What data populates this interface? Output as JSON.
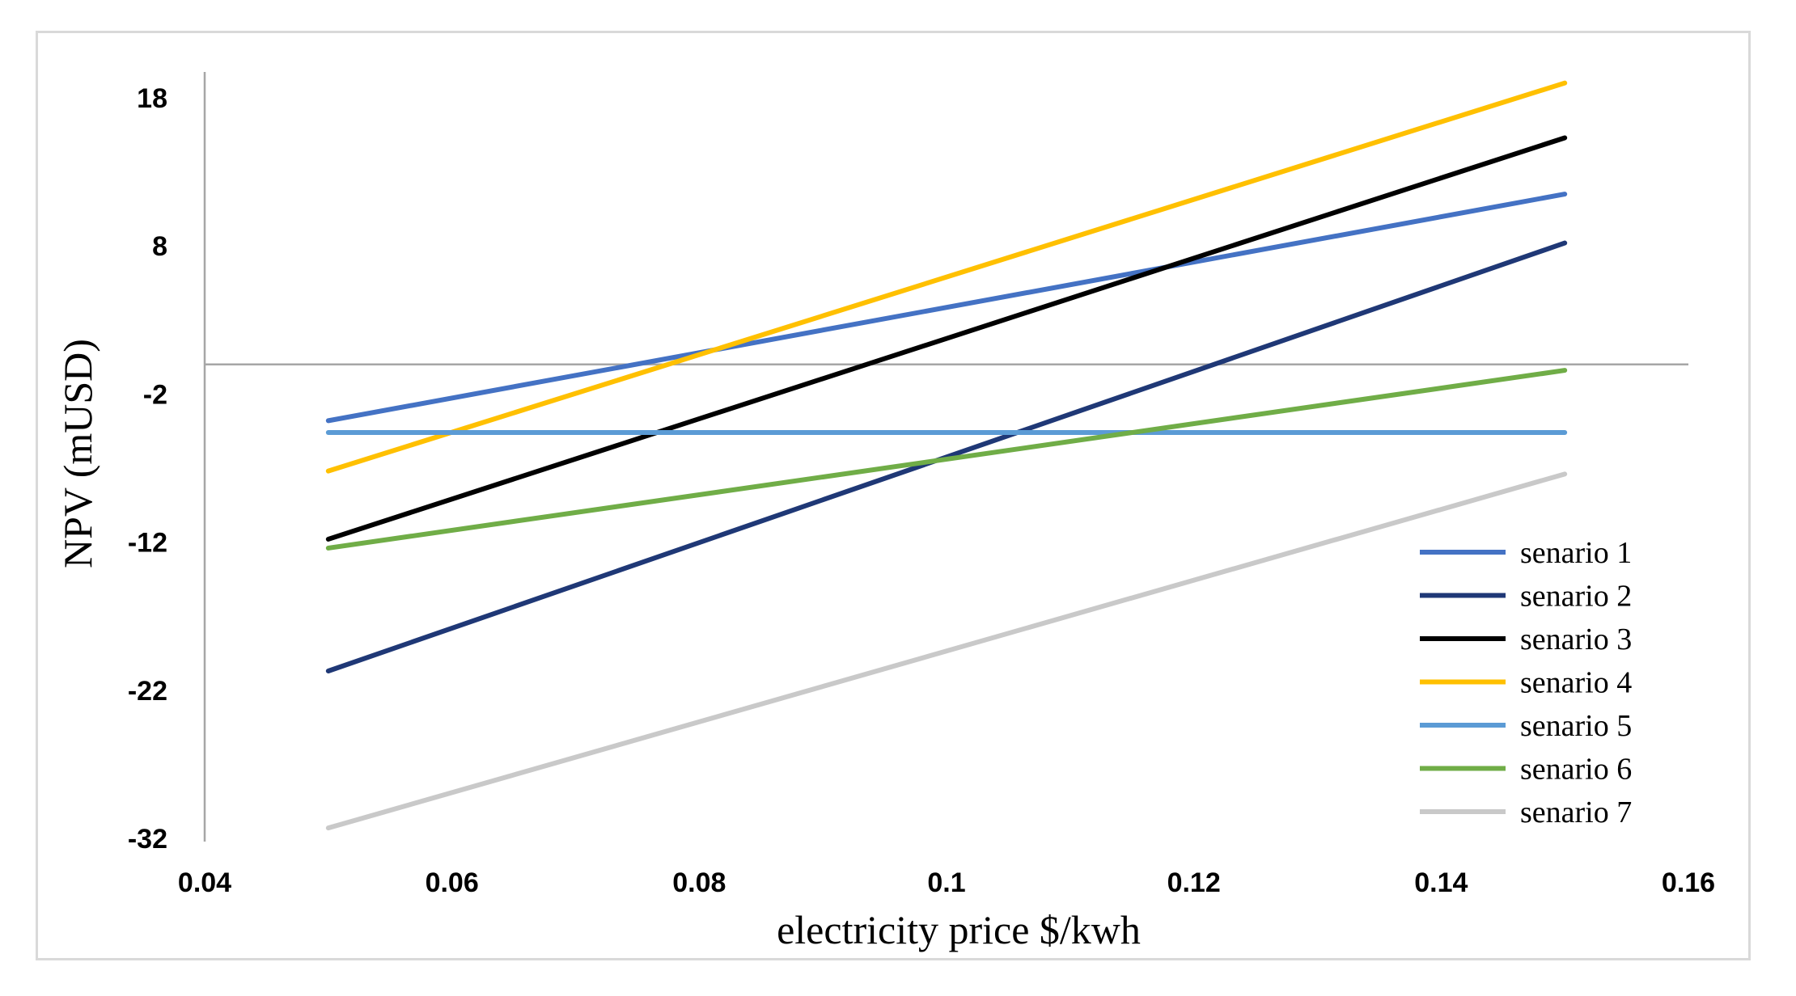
{
  "chart_data": {
    "type": "line",
    "title": "",
    "xlabel": "electricity price $/kwh",
    "ylabel": "NPV (mUSD)",
    "xlim": [
      0.04,
      0.16
    ],
    "ylim": [
      -32,
      20
    ],
    "x_ticks": [
      0.04,
      0.06,
      0.08,
      0.1,
      0.12,
      0.14,
      0.16
    ],
    "x_tick_labels": [
      "0.04",
      "0.06",
      "0.08",
      "0.1",
      "0.12",
      "0.14",
      "0.16"
    ],
    "y_ticks": [
      18,
      8,
      -2,
      -12,
      -22,
      -32
    ],
    "y_tick_labels": [
      "18",
      "8",
      "-2",
      "-12",
      "-22",
      "-32"
    ],
    "grid": false,
    "legend_position": "bottom-right",
    "x": [
      0.05,
      0.15
    ],
    "series": [
      {
        "name": "senario 1",
        "color": "#4472c4",
        "values": [
          -3.8,
          11.5
        ]
      },
      {
        "name": "senario 2",
        "color": "#1f3876",
        "values": [
          -20.7,
          8.2
        ]
      },
      {
        "name": "senario 3",
        "color": "#000000",
        "values": [
          -11.8,
          15.3
        ]
      },
      {
        "name": "senario 4",
        "color": "#ffc000",
        "values": [
          -7.2,
          19.0
        ]
      },
      {
        "name": "senario 5",
        "color": "#5b9bd5",
        "values": [
          -4.6,
          -4.6
        ]
      },
      {
        "name": "senario 6",
        "color": "#70ad47",
        "values": [
          -12.4,
          -0.4
        ]
      },
      {
        "name": "senario 7",
        "color": "#c9c9c9",
        "values": [
          -31.3,
          -7.4
        ]
      }
    ]
  }
}
